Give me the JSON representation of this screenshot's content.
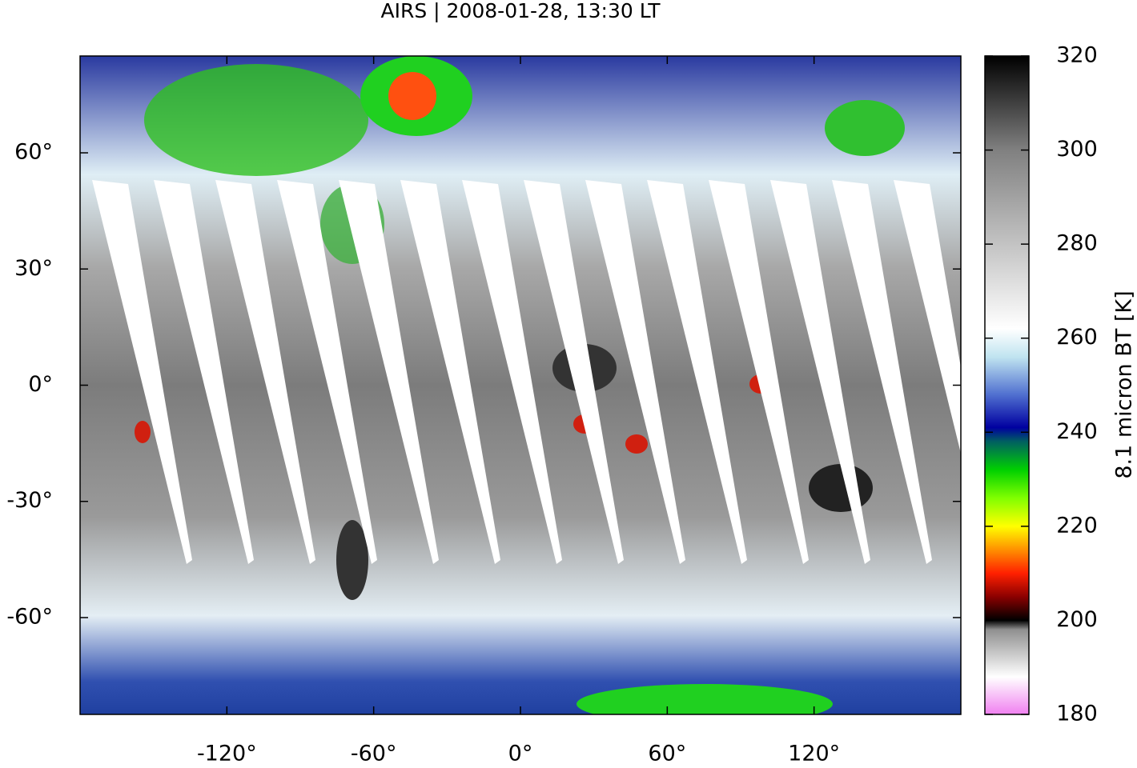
{
  "chart_data": {
    "type": "map",
    "title": "AIRS | 2008-01-28, 13:30 LT",
    "xlim": [
      -180,
      180
    ],
    "ylim": [
      -85,
      85
    ],
    "xticks": [
      {
        "value": -120,
        "label": "-120°"
      },
      {
        "value": -60,
        "label": "-60°"
      },
      {
        "value": 0,
        "label": "0°"
      },
      {
        "value": 60,
        "label": "60°"
      },
      {
        "value": 120,
        "label": "120°"
      }
    ],
    "yticks": [
      {
        "value": -60,
        "label": "-60°"
      },
      {
        "value": -30,
        "label": "-30°"
      },
      {
        "value": 0,
        "label": "0°"
      },
      {
        "value": 30,
        "label": "30°"
      },
      {
        "value": 60,
        "label": "60°"
      }
    ],
    "colorbar": {
      "label": "8.1 micron BT [K]",
      "clim": [
        180,
        320
      ],
      "ticks": [
        180,
        200,
        220,
        240,
        260,
        280,
        300,
        320
      ],
      "colormap": [
        [
          180,
          "#f080f0"
        ],
        [
          188,
          "#ffffff"
        ],
        [
          198,
          "#909090"
        ],
        [
          200,
          "#000000"
        ],
        [
          205,
          "#8b0000"
        ],
        [
          210,
          "#ff2000"
        ],
        [
          215,
          "#ff9000"
        ],
        [
          220,
          "#ffff00"
        ],
        [
          226,
          "#80ff00"
        ],
        [
          232,
          "#00d000"
        ],
        [
          238,
          "#006060"
        ],
        [
          241,
          "#0000a0"
        ],
        [
          248,
          "#5070d0"
        ],
        [
          256,
          "#c0e4f0"
        ],
        [
          262,
          "#ffffff"
        ],
        [
          300,
          "#808080"
        ],
        [
          320,
          "#000000"
        ]
      ]
    }
  }
}
